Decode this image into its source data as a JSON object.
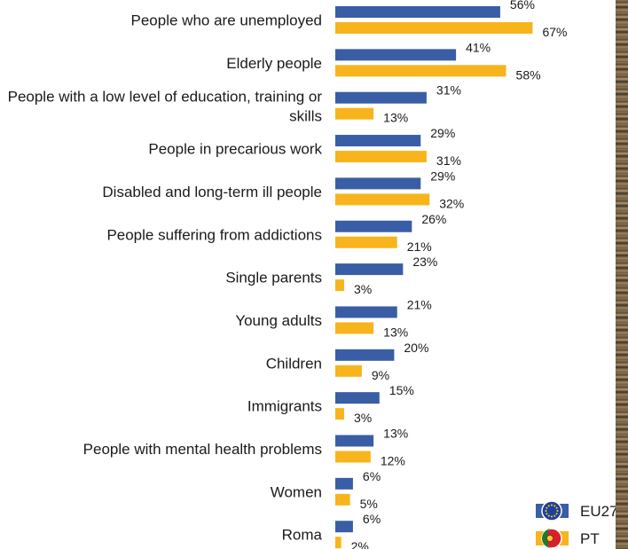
{
  "chart_data": {
    "type": "bar",
    "orientation": "horizontal",
    "categories": [
      "People who are unemployed",
      "Elderly people",
      "People with a low level of education, training or skills",
      "People in precarious work",
      "Disabled and long-term ill people",
      "People suffering from addictions",
      "Single parents",
      "Young adults",
      "Children",
      "Immigrants",
      "People with mental health problems",
      "Women",
      "Roma"
    ],
    "category_label_lines": [
      [
        "People who are unemployed"
      ],
      [
        "Elderly people"
      ],
      [
        "People with a low level of education, training or",
        "skills"
      ],
      [
        "People in precarious work"
      ],
      [
        "Disabled and long-term ill people"
      ],
      [
        "People suffering from addictions"
      ],
      [
        "Single parents"
      ],
      [
        "Young adults"
      ],
      [
        "Children"
      ],
      [
        "Immigrants"
      ],
      [
        "People with mental health problems"
      ],
      [
        "Women"
      ],
      [
        "Roma"
      ]
    ],
    "series": [
      {
        "name": "EU27",
        "color": "#3a5ea5",
        "values": [
          56,
          41,
          31,
          29,
          29,
          26,
          23,
          21,
          20,
          15,
          13,
          6,
          6
        ]
      },
      {
        "name": "PT",
        "color": "#f8b41c",
        "values": [
          67,
          58,
          13,
          31,
          32,
          21,
          3,
          13,
          9,
          3,
          12,
          5,
          2
        ]
      }
    ],
    "value_suffix": "%",
    "xlim": [
      0,
      100
    ],
    "grid": false,
    "legend_position": "bottom-right",
    "legend_icons": {
      "EU27": "eu-flag-icon",
      "PT": "portugal-flag-icon"
    }
  }
}
